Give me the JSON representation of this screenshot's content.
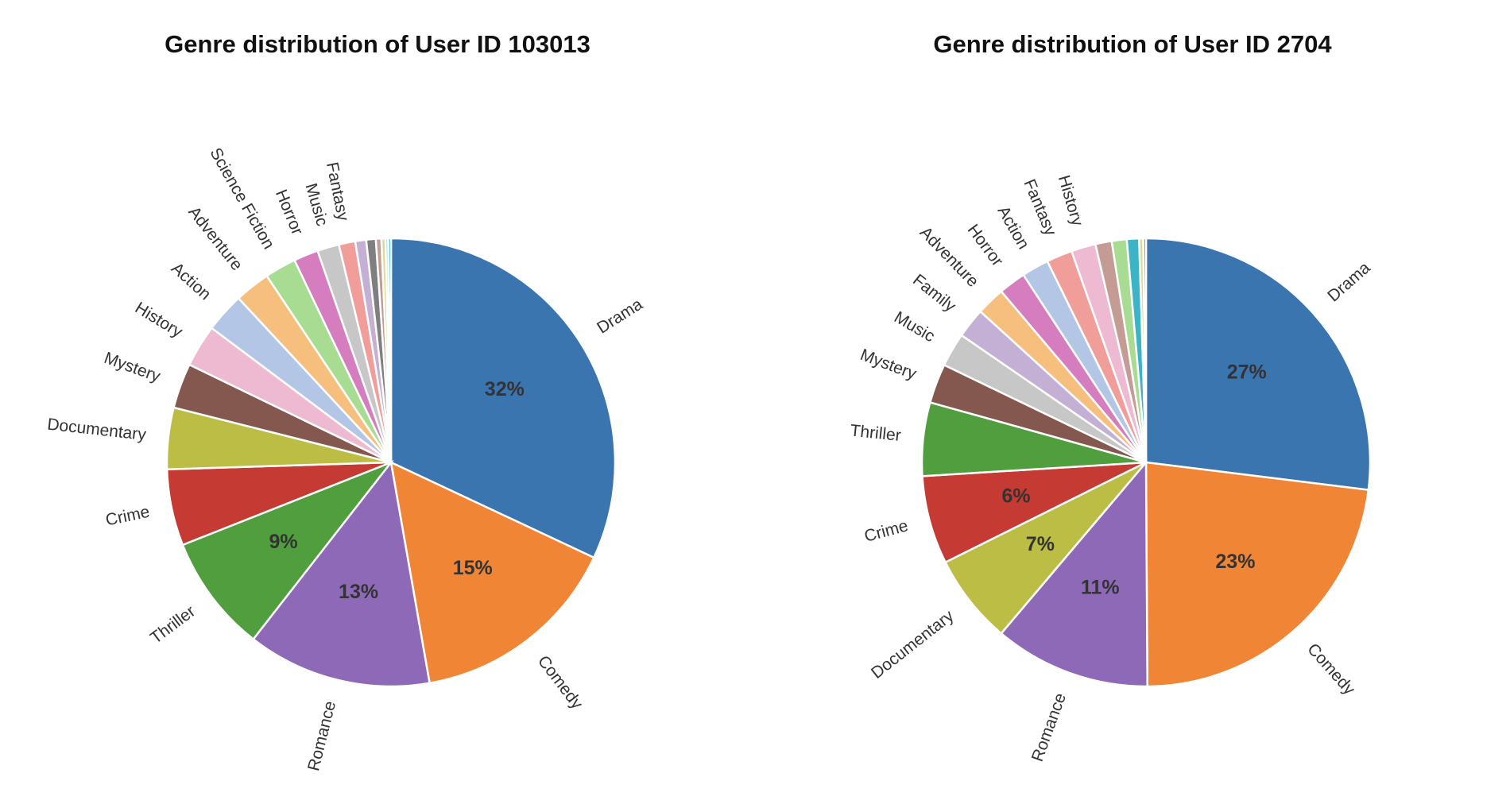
{
  "chart_data": [
    {
      "type": "pie",
      "title": "Genre distribution of User ID 103013",
      "start": "top",
      "direction": "clockwise",
      "slices": [
        {
          "label": "Drama",
          "value": 32.5,
          "pct_label": "32%",
          "color": "#3a75af"
        },
        {
          "label": "Comedy",
          "value": 15.5,
          "pct_label": "15%",
          "color": "#ef8535"
        },
        {
          "label": "Romance",
          "value": 13.5,
          "pct_label": "13%",
          "color": "#8d69b8"
        },
        {
          "label": "Thriller",
          "value": 8.6,
          "pct_label": "9%",
          "color": "#519e3e"
        },
        {
          "label": "Crime",
          "value": 5.6,
          "pct_label": "",
          "color": "#c53a32"
        },
        {
          "label": "Documentary",
          "value": 4.5,
          "pct_label": "",
          "color": "#bcbd45"
        },
        {
          "label": "Mystery",
          "value": 3.3,
          "pct_label": "",
          "color": "#84584e"
        },
        {
          "label": "History",
          "value": 3.1,
          "pct_label": "",
          "color": "#eebad1"
        },
        {
          "label": "Action",
          "value": 2.9,
          "pct_label": "",
          "color": "#b3c6e5"
        },
        {
          "label": "Adventure",
          "value": 2.6,
          "pct_label": "",
          "color": "#f6bf7e"
        },
        {
          "label": "Science Fiction",
          "value": 2.3,
          "pct_label": "",
          "color": "#a8dc93"
        },
        {
          "label": "Horror",
          "value": 1.8,
          "pct_label": "",
          "color": "#d57dbf"
        },
        {
          "label": "Music",
          "value": 1.6,
          "pct_label": "",
          "color": "#c7c7c7"
        },
        {
          "label": "Fantasy",
          "value": 1.2,
          "pct_label": "",
          "color": "#f19d99"
        },
        {
          "label": "",
          "value": 0.8,
          "pct_label": "",
          "color": "#c5b0d5"
        },
        {
          "label": "",
          "value": 0.7,
          "pct_label": "",
          "color": "#7f7f7f"
        },
        {
          "label": "",
          "value": 0.4,
          "pct_label": "",
          "color": "#c49c94"
        },
        {
          "label": "",
          "value": 0.3,
          "pct_label": "",
          "color": "#dbdb8d"
        },
        {
          "label": "",
          "value": 0.2,
          "pct_label": "",
          "color": "#9edae5"
        },
        {
          "label": "",
          "value": 0.2,
          "pct_label": "",
          "color": "#17becf"
        }
      ]
    },
    {
      "type": "pie",
      "title": "Genre distribution of User ID 2704",
      "start": "top",
      "direction": "clockwise",
      "slices": [
        {
          "label": "Drama",
          "value": 27.5,
          "pct_label": "27%",
          "color": "#3a75af"
        },
        {
          "label": "Comedy",
          "value": 23.4,
          "pct_label": "23%",
          "color": "#ef8535"
        },
        {
          "label": "Romance",
          "value": 11.5,
          "pct_label": "11%",
          "color": "#8d69b8"
        },
        {
          "label": "Documentary",
          "value": 6.6,
          "pct_label": "7%",
          "color": "#bcbd45"
        },
        {
          "label": "Crime",
          "value": 6.5,
          "pct_label": "6%",
          "color": "#c53a32"
        },
        {
          "label": "Thriller",
          "value": 5.4,
          "pct_label": "",
          "color": "#519e3e"
        },
        {
          "label": "Mystery",
          "value": 2.9,
          "pct_label": "",
          "color": "#84584e"
        },
        {
          "label": "Music",
          "value": 2.5,
          "pct_label": "",
          "color": "#c7c7c7"
        },
        {
          "label": "Family",
          "value": 2.2,
          "pct_label": "",
          "color": "#c5b0d5"
        },
        {
          "label": "Adventure",
          "value": 2.1,
          "pct_label": "",
          "color": "#f6bf7e"
        },
        {
          "label": "Horror",
          "value": 2.0,
          "pct_label": "",
          "color": "#d57dbf"
        },
        {
          "label": "Action",
          "value": 2.0,
          "pct_label": "",
          "color": "#b3c6e5"
        },
        {
          "label": "Fantasy",
          "value": 1.9,
          "pct_label": "",
          "color": "#f19d99"
        },
        {
          "label": "History",
          "value": 1.8,
          "pct_label": "",
          "color": "#eebad1"
        },
        {
          "label": "",
          "value": 1.2,
          "pct_label": "",
          "color": "#c49c94"
        },
        {
          "label": "",
          "value": 1.1,
          "pct_label": "",
          "color": "#a8dc93"
        },
        {
          "label": "",
          "value": 0.9,
          "pct_label": "",
          "color": "#3bb4c8"
        },
        {
          "label": "",
          "value": 0.3,
          "pct_label": "",
          "color": "#dbdb8d"
        },
        {
          "label": "",
          "value": 0.2,
          "pct_label": "",
          "color": "#7f7f7f"
        }
      ]
    }
  ]
}
